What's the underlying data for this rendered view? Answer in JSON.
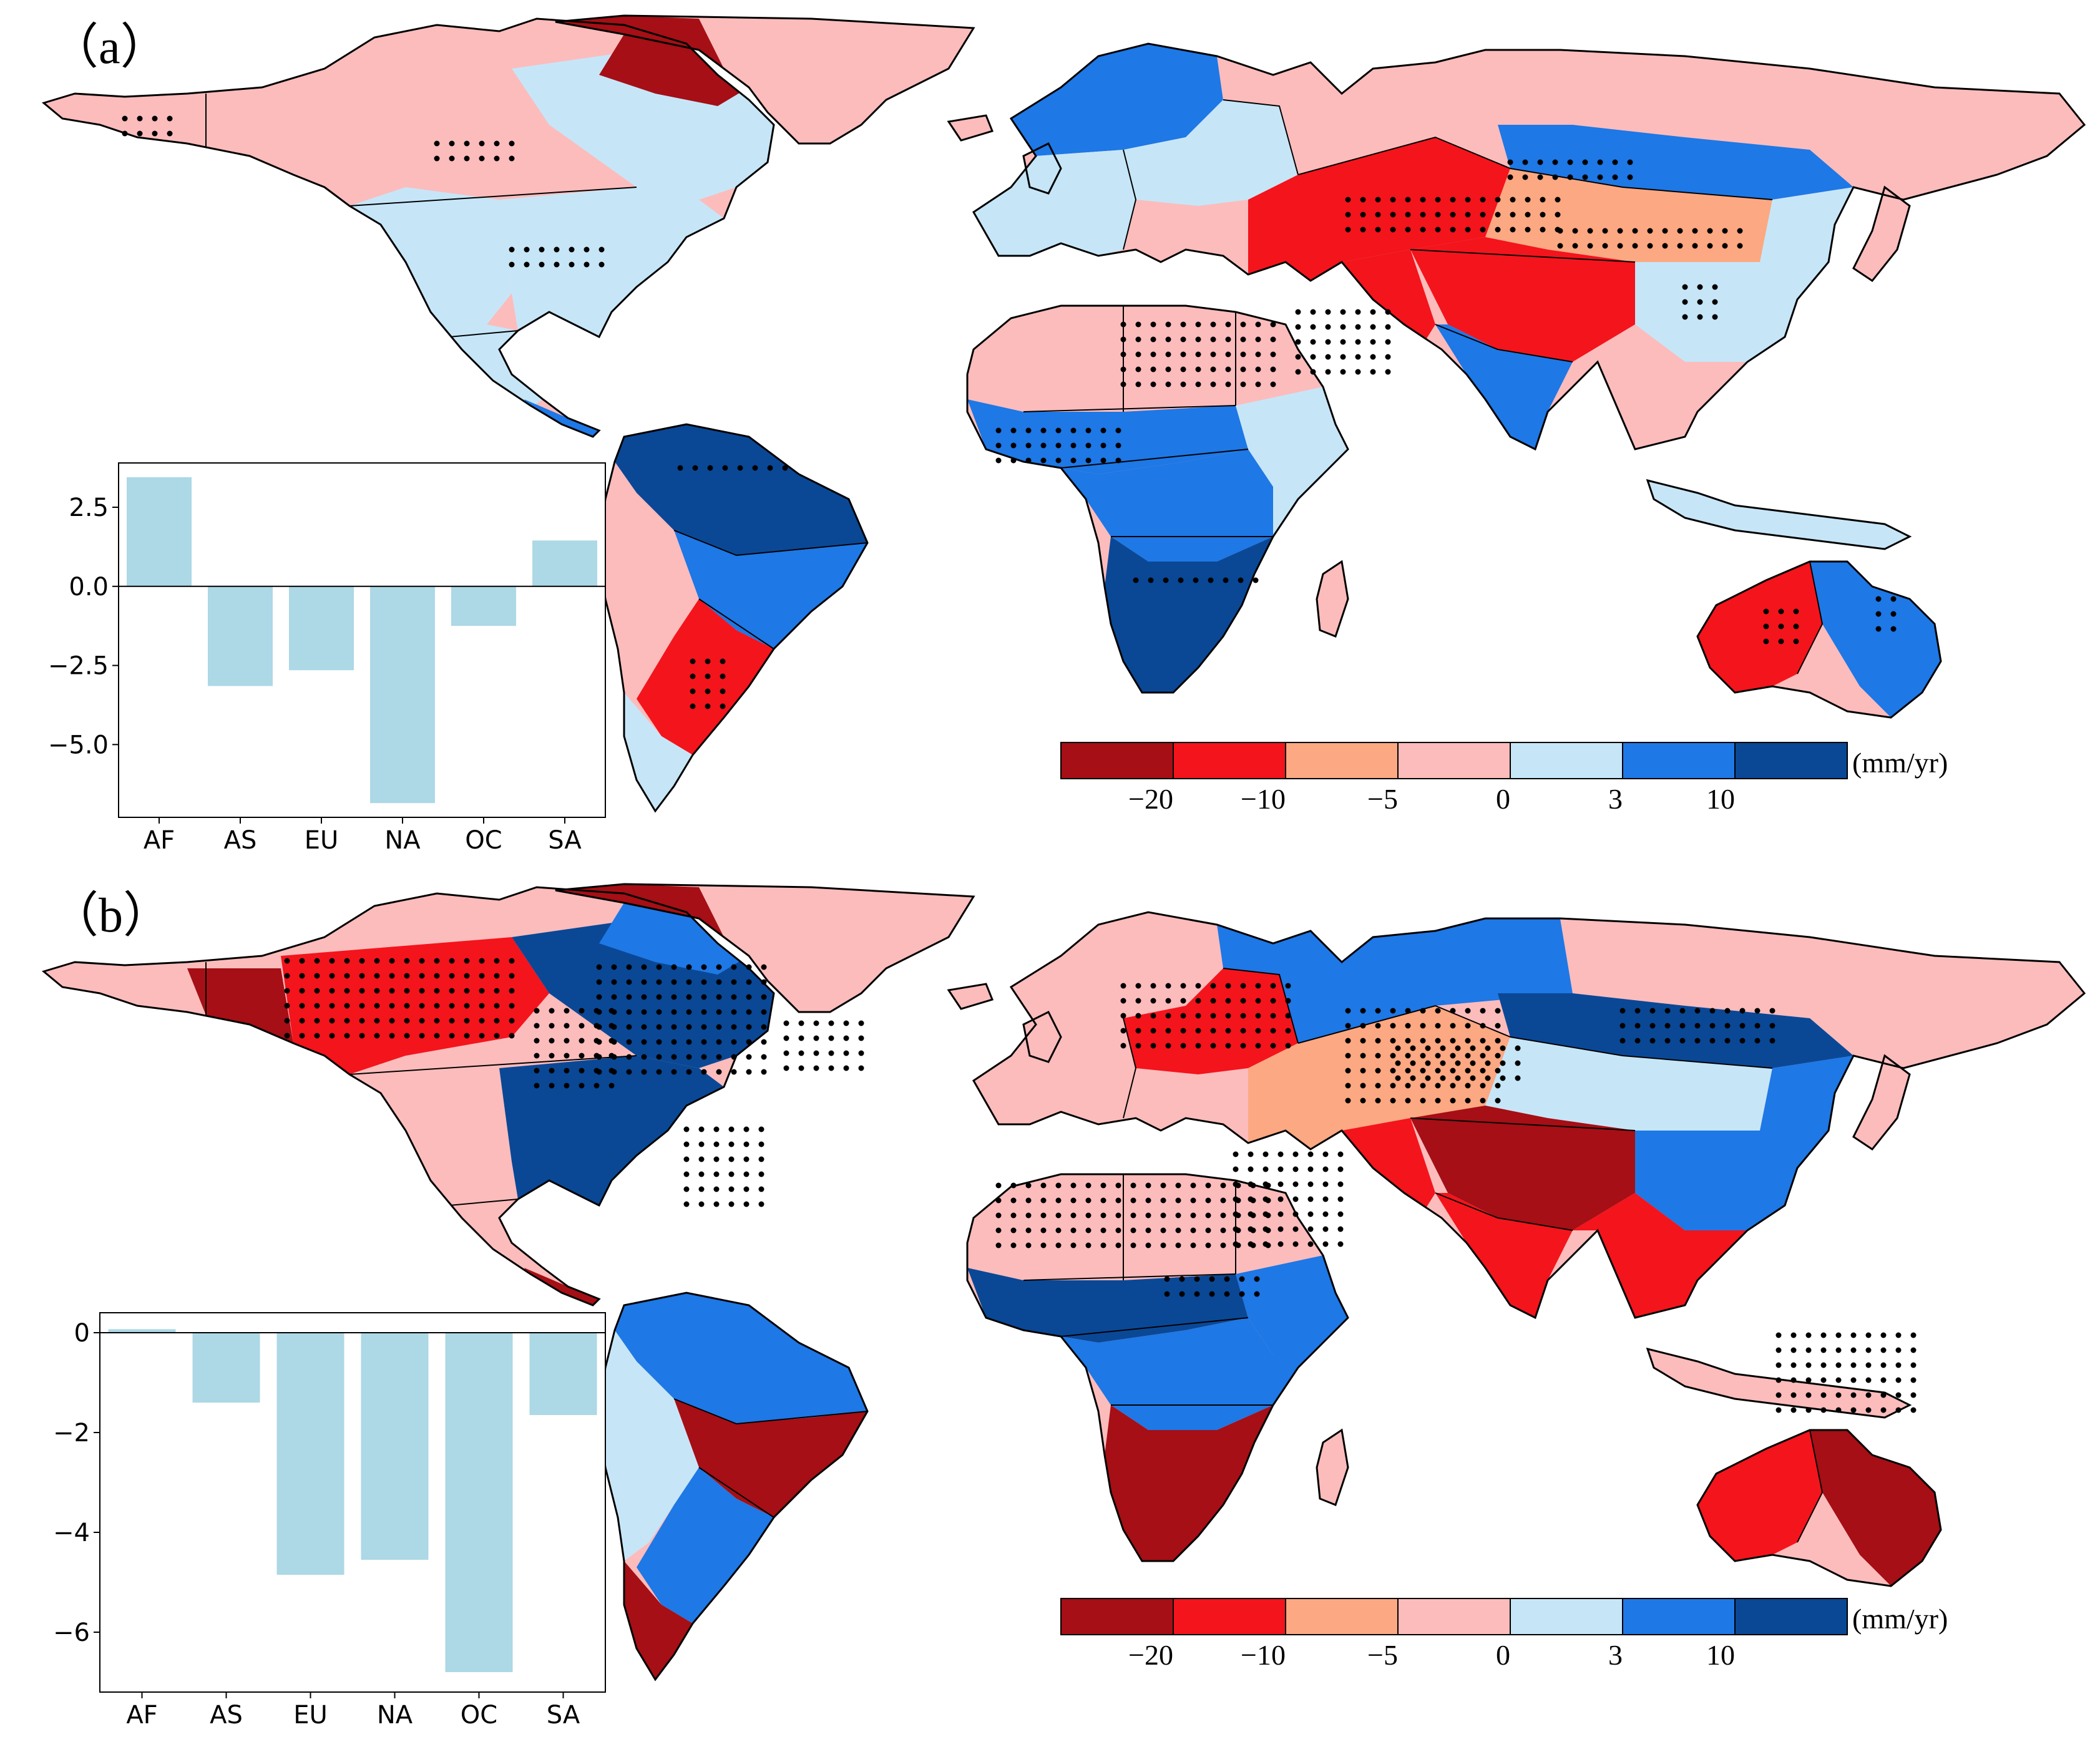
{
  "figure": {
    "colors": {
      "class_colors": [
        "#a50f15",
        "#f4141c",
        "#fca882",
        "#fcbcbc",
        "#c6e6f8",
        "#1e78e6",
        "#0a4896"
      ],
      "land_default": "#fcbcbc",
      "bar_fill": "#add8e6",
      "outline": "#000000"
    }
  },
  "legend": {
    "unit": "(mm/yr)",
    "tick_labels": [
      "-20",
      "-10",
      "-5",
      "0",
      "3",
      "10"
    ]
  },
  "panels": [
    {
      "label": "（a）",
      "inset": {
        "chart_data": {
          "type": "bar",
          "categories": [
            "AF",
            "AS",
            "EU",
            "NA",
            "OC",
            "SA"
          ],
          "values": [
            3.45,
            -3.15,
            -2.65,
            -6.85,
            -1.25,
            1.45
          ],
          "ylim": [
            -7.3,
            3.9
          ],
          "yticks": [
            2.5,
            0.0,
            -2.5,
            -5.0
          ],
          "ytick_labels": [
            "2.5",
            "0.0",
            "−2.5",
            "−5.0"
          ],
          "title": "",
          "xlabel": "",
          "ylabel": ""
        }
      },
      "regions": [
        {
          "name": "alaska",
          "cls": 3
        },
        {
          "name": "yukon",
          "cls": 3
        },
        {
          "name": "canada-north",
          "cls": 3
        },
        {
          "name": "canada-east",
          "cls": 4
        },
        {
          "name": "usa-west",
          "cls": 4
        },
        {
          "name": "usa-east",
          "cls": 4
        },
        {
          "name": "mexico",
          "cls": 4
        },
        {
          "name": "central-america",
          "cls": 5
        },
        {
          "name": "amazon-north",
          "cls": 6
        },
        {
          "name": "amazon-south",
          "cls": 5
        },
        {
          "name": "andes",
          "cls": 3
        },
        {
          "name": "southern-cone",
          "cls": 1
        },
        {
          "name": "patagonia",
          "cls": 4
        },
        {
          "name": "greenland-coast",
          "cls": 0
        },
        {
          "name": "arctic-islands",
          "cls": 0
        },
        {
          "name": "scandinavia",
          "cls": 5
        },
        {
          "name": "western-europe",
          "cls": 4
        },
        {
          "name": "eastern-europe",
          "cls": 4
        },
        {
          "name": "west-siberia",
          "cls": 3
        },
        {
          "name": "east-siberia",
          "cls": 3
        },
        {
          "name": "siberia-band",
          "cls": 5
        },
        {
          "name": "kazakhstan",
          "cls": 1
        },
        {
          "name": "mongolia",
          "cls": 2
        },
        {
          "name": "middle-east",
          "cls": 1
        },
        {
          "name": "tibet",
          "cls": 1
        },
        {
          "name": "india",
          "cls": 5
        },
        {
          "name": "china-east",
          "cls": 4
        },
        {
          "name": "se-asia",
          "cls": 3
        },
        {
          "name": "sahara",
          "cls": 3
        },
        {
          "name": "sahel",
          "cls": 5
        },
        {
          "name": "central-africa",
          "cls": 5
        },
        {
          "name": "southern-africa",
          "cls": 6
        },
        {
          "name": "east-africa",
          "cls": 4
        },
        {
          "name": "madagascar",
          "cls": 3
        },
        {
          "name": "indonesia",
          "cls": 4
        },
        {
          "name": "australia-west",
          "cls": 1
        },
        {
          "name": "australia-east",
          "cls": 5
        },
        {
          "name": "australia-south",
          "cls": 3
        }
      ]
    },
    {
      "label": "（b）",
      "inset": {
        "chart_data": {
          "type": "bar",
          "categories": [
            "AF",
            "AS",
            "EU",
            "NA",
            "OC",
            "SA"
          ],
          "values": [
            0.07,
            -1.4,
            -4.85,
            -4.55,
            -6.8,
            -1.65
          ],
          "ylim": [
            -7.2,
            0.4
          ],
          "yticks": [
            0,
            -2,
            -4,
            -6
          ],
          "ytick_labels": [
            "0",
            "−2",
            "−4",
            "−6"
          ],
          "title": "",
          "xlabel": "",
          "ylabel": ""
        }
      },
      "regions": [
        {
          "name": "alaska",
          "cls": 3
        },
        {
          "name": "yukon",
          "cls": 0
        },
        {
          "name": "canada-north",
          "cls": 1
        },
        {
          "name": "canada-east",
          "cls": 6
        },
        {
          "name": "usa-west",
          "cls": 3
        },
        {
          "name": "usa-east",
          "cls": 6
        },
        {
          "name": "mexico",
          "cls": 3
        },
        {
          "name": "central-america",
          "cls": 0
        },
        {
          "name": "amazon-north",
          "cls": 5
        },
        {
          "name": "amazon-south",
          "cls": 0
        },
        {
          "name": "andes",
          "cls": 4
        },
        {
          "name": "southern-cone",
          "cls": 5
        },
        {
          "name": "patagonia",
          "cls": 0
        },
        {
          "name": "greenland-coast",
          "cls": 0
        },
        {
          "name": "arctic-islands",
          "cls": 5
        },
        {
          "name": "scandinavia",
          "cls": 3
        },
        {
          "name": "western-europe",
          "cls": 3
        },
        {
          "name": "eastern-europe",
          "cls": 1
        },
        {
          "name": "west-siberia",
          "cls": 5
        },
        {
          "name": "east-siberia",
          "cls": 3
        },
        {
          "name": "siberia-band",
          "cls": 6
        },
        {
          "name": "kazakhstan",
          "cls": 2
        },
        {
          "name": "mongolia",
          "cls": 4
        },
        {
          "name": "middle-east",
          "cls": 1
        },
        {
          "name": "tibet",
          "cls": 0
        },
        {
          "name": "india",
          "cls": 1
        },
        {
          "name": "china-east",
          "cls": 5
        },
        {
          "name": "se-asia",
          "cls": 1
        },
        {
          "name": "sahara",
          "cls": 3
        },
        {
          "name": "sahel",
          "cls": 6
        },
        {
          "name": "central-africa",
          "cls": 5
        },
        {
          "name": "southern-africa",
          "cls": 0
        },
        {
          "name": "east-africa",
          "cls": 5
        },
        {
          "name": "madagascar",
          "cls": 3
        },
        {
          "name": "indonesia",
          "cls": 3
        },
        {
          "name": "australia-west",
          "cls": 1
        },
        {
          "name": "australia-east",
          "cls": 0
        },
        {
          "name": "australia-south",
          "cls": 3
        }
      ]
    }
  ]
}
